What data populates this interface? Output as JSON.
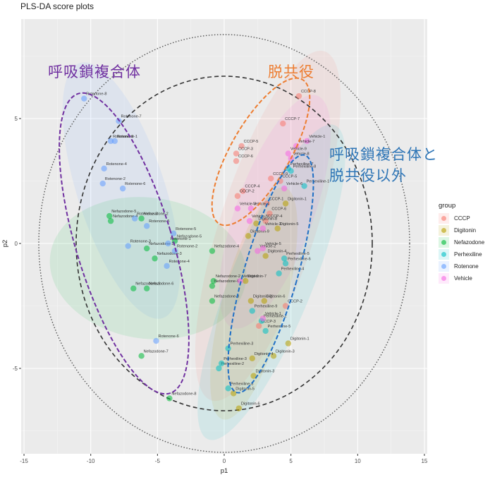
{
  "chart_data": {
    "type": "scatter",
    "title": "PLS-DA score plots",
    "xlabel": "p1",
    "ylabel": "p2",
    "xlim": [
      -15.5,
      15.5
    ],
    "ylim": [
      -9.3,
      9.6
    ],
    "xticks": [
      -15,
      -10,
      -5,
      0,
      5,
      10,
      15
    ],
    "yticks": [
      -5,
      0,
      5
    ],
    "grid": true,
    "legend": {
      "title": "group",
      "position": "right"
    },
    "series": [
      {
        "name": "CCCP",
        "color": "#F8766D",
        "points": [
          {
            "label": "CCCP-8",
            "x": 5.6,
            "y": 5.9
          },
          {
            "label": "CCCP-7",
            "x": 4.4,
            "y": 4.8
          },
          {
            "label": "CCCP-5",
            "x": 1.3,
            "y": 3.9
          },
          {
            "label": "CCCP-3",
            "x": 0.9,
            "y": 3.6
          },
          {
            "label": "CCCP-6",
            "x": 0.9,
            "y": 3.3
          },
          {
            "label": "CCCP-4",
            "x": 1.4,
            "y": 2.1
          },
          {
            "label": "CCCP-2",
            "x": 1.0,
            "y": 1.9
          },
          {
            "label": "CCCP-1",
            "x": 3.2,
            "y": 1.6
          },
          {
            "label": "CCCP-9",
            "x": 3.5,
            "y": 2.6
          },
          {
            "label": "CCCP-5b",
            "x": 4.2,
            "y": 2.5
          },
          {
            "label": "CCCP-6b",
            "x": 3.4,
            "y": 1.2
          },
          {
            "label": "CCCP-4b",
            "x": 3.1,
            "y": 0.9
          },
          {
            "label": "CCCP-2b",
            "x": 4.6,
            "y": -2.5
          },
          {
            "label": "CCCP-3b",
            "x": 2.6,
            "y": -3.3
          }
        ]
      },
      {
        "name": "Digitonin",
        "color": "#B79F00",
        "points": [
          {
            "label": "Digitonin-1",
            "x": 4.6,
            "y": 1.6
          },
          {
            "label": "Digitonin-5",
            "x": 4.0,
            "y": 0.6
          },
          {
            "label": "Digitonin-9",
            "x": 1.8,
            "y": 0.3
          },
          {
            "label": "Digitonin-8",
            "x": 2.4,
            "y": 0.8
          },
          {
            "label": "Digitonin-4",
            "x": 3.1,
            "y": -0.5
          },
          {
            "label": "Digitonin-7",
            "x": 1.6,
            "y": -1.5
          },
          {
            "label": "Digitonin-6",
            "x": 3.0,
            "y": -2.3
          },
          {
            "label": "Digitonin-2",
            "x": 2.0,
            "y": -2.3
          },
          {
            "label": "Digitonin-1b",
            "x": 4.8,
            "y": -4.0
          },
          {
            "label": "Digitonin-3",
            "x": 3.7,
            "y": -4.5
          },
          {
            "label": "Digitonin-4b",
            "x": 2.1,
            "y": -4.6
          },
          {
            "label": "Digitonin-3b",
            "x": 2.2,
            "y": -5.3
          },
          {
            "label": "Digitonin-5b",
            "x": 0.7,
            "y": -6.0
          },
          {
            "label": "Digitonin-6b",
            "x": 1.1,
            "y": -6.6
          }
        ]
      },
      {
        "name": "Nefazodone",
        "color": "#00BA38",
        "points": [
          {
            "label": "Nefazodone-5",
            "x": -8.6,
            "y": 1.1
          },
          {
            "label": "Nefazodone-4",
            "x": -8.5,
            "y": 0.9
          },
          {
            "label": "Nefazodone-2",
            "x": -6.2,
            "y": 1.0
          },
          {
            "label": "Nefazodone-1",
            "x": -5.8,
            "y": -0.2
          },
          {
            "label": "Nefazodone-3",
            "x": -5.2,
            "y": -0.6
          },
          {
            "label": "Nefazodone-6",
            "x": -5.8,
            "y": -1.8
          },
          {
            "label": "Nefazodone-9",
            "x": -6.8,
            "y": -1.8
          },
          {
            "label": "Nefazodone-5b",
            "x": -3.7,
            "y": 0.1
          },
          {
            "label": "Nefazodone-4b",
            "x": -0.9,
            "y": -0.3
          },
          {
            "label": "Nefazodone-2b",
            "x": -0.8,
            "y": -1.5
          },
          {
            "label": "Nefazodone-6b",
            "x": -0.9,
            "y": -1.7
          },
          {
            "label": "Nefazodone-3b",
            "x": -0.9,
            "y": -2.3
          },
          {
            "label": "Nefazodone-7",
            "x": -6.2,
            "y": -4.5
          },
          {
            "label": "Nefazodone-8",
            "x": -4.1,
            "y": -6.2
          }
        ]
      },
      {
        "name": "Perhexiline",
        "color": "#00BFC4",
        "points": [
          {
            "label": "Perhexiline-7",
            "x": 4.8,
            "y": 3.0
          },
          {
            "label": "Perhexiline-8",
            "x": 5.0,
            "y": 2.9
          },
          {
            "label": "Perhexiline-1",
            "x": 6.0,
            "y": 2.3
          },
          {
            "label": "Perhexiline-5",
            "x": 4.5,
            "y": -0.6
          },
          {
            "label": "Perhexiline-6",
            "x": 4.6,
            "y": -0.8
          },
          {
            "label": "Perhexiline-4",
            "x": 4.1,
            "y": -1.2
          },
          {
            "label": "Perhexiline-9",
            "x": 2.1,
            "y": -2.7
          },
          {
            "label": "Perhexiline-2",
            "x": 2.8,
            "y": -3.1
          },
          {
            "label": "Perhexiline-3",
            "x": 0.3,
            "y": -4.2
          },
          {
            "label": "Perhexiline-5b",
            "x": 3.1,
            "y": -3.5
          },
          {
            "label": "Perhexiline-2b",
            "x": -0.4,
            "y": -5.0
          },
          {
            "label": "Perhexiline-3c",
            "x": -0.2,
            "y": -4.8
          },
          {
            "label": "Perhexiline-8b",
            "x": 0.3,
            "y": -5.8
          }
        ]
      },
      {
        "name": "Rotenone",
        "color": "#619CFF",
        "points": [
          {
            "label": "Rotenone-8",
            "x": -10.5,
            "y": 5.8
          },
          {
            "label": "Rotenone-7",
            "x": -7.9,
            "y": 4.9
          },
          {
            "label": "Rotenone-9",
            "x": -8.5,
            "y": 4.1
          },
          {
            "label": "Rotenone-1",
            "x": -8.2,
            "y": 4.1
          },
          {
            "label": "Rotenone-4",
            "x": -9.0,
            "y": 3.0
          },
          {
            "label": "Rotenone-2",
            "x": -9.1,
            "y": 2.4
          },
          {
            "label": "Rotenone-6",
            "x": -7.6,
            "y": 2.2
          },
          {
            "label": "Rotenone-3",
            "x": -6.7,
            "y": 1.0
          },
          {
            "label": "Rotenone-5",
            "x": -5.8,
            "y": 0.7
          },
          {
            "label": "Rotenone-5b",
            "x": -3.8,
            "y": 0.4
          },
          {
            "label": "Rotenone-1b",
            "x": -4.2,
            "y": 0.0
          },
          {
            "label": "Rotenone-2b",
            "x": -3.7,
            "y": -0.3
          },
          {
            "label": "Rotenone-3b",
            "x": -7.2,
            "y": -0.1
          },
          {
            "label": "Rotenone-4b",
            "x": -4.3,
            "y": -0.9
          },
          {
            "label": "Rotenone-6b",
            "x": -5.1,
            "y": -3.9
          }
        ]
      },
      {
        "name": "Vehicle",
        "color": "#F564E3",
        "points": [
          {
            "label": "Vehicle-1",
            "x": 6.2,
            "y": 4.1
          },
          {
            "label": "Vehicle-7",
            "x": 5.4,
            "y": 3.9
          },
          {
            "label": "Vehicle-9",
            "x": 4.8,
            "y": 3.6
          },
          {
            "label": "Vehicle-8",
            "x": 5.0,
            "y": 3.4
          },
          {
            "label": "Vehicle-6",
            "x": 4.5,
            "y": 2.2
          },
          {
            "label": "Vehicle-3",
            "x": 1.0,
            "y": 1.4
          },
          {
            "label": "Vehicle-4",
            "x": 2.0,
            "y": 1.4
          },
          {
            "label": "Vehicle-5",
            "x": 1.9,
            "y": 0.9
          },
          {
            "label": "Vehicle-3b",
            "x": 2.9,
            "y": 0.6
          },
          {
            "label": "Vehicle-2",
            "x": 2.5,
            "y": -0.3
          },
          {
            "label": "Vehicle-5b",
            "x": 2.9,
            "y": -0.2
          },
          {
            "label": "Vehicle-6b",
            "x": 1.2,
            "y": -1.5
          },
          {
            "label": "Vehicle-1b",
            "x": 2.9,
            "y": -3.0
          }
        ]
      }
    ],
    "annotations": [
      {
        "text": "呼吸鎖複合体",
        "color": "#7030A0"
      },
      {
        "text": "脱共役",
        "color": "#ED7D31"
      },
      {
        "text": "呼吸鎖複合体と\n脱共役以外",
        "color": "#2E75B6"
      }
    ]
  },
  "legend": {
    "title": "group",
    "items": [
      {
        "label": "CCCP",
        "color": "#F8766D"
      },
      {
        "label": "Digitonin",
        "color": "#B79F00"
      },
      {
        "label": "Nefazodone",
        "color": "#00BA38"
      },
      {
        "label": "Perhexiline",
        "color": "#00BFC4"
      },
      {
        "label": "Rotenone",
        "color": "#619CFF"
      },
      {
        "label": "Vehicle",
        "color": "#F564E3"
      }
    ]
  },
  "annotations": {
    "respiratory_chain": "呼吸鎖複合体",
    "uncoupler": "脱共役",
    "other_line1": "呼吸鎖複合体と",
    "other_line2": "脱共役以外"
  },
  "axes": {
    "xlabel": "p1",
    "ylabel": "p2",
    "title": "PLS-DA score plots"
  }
}
